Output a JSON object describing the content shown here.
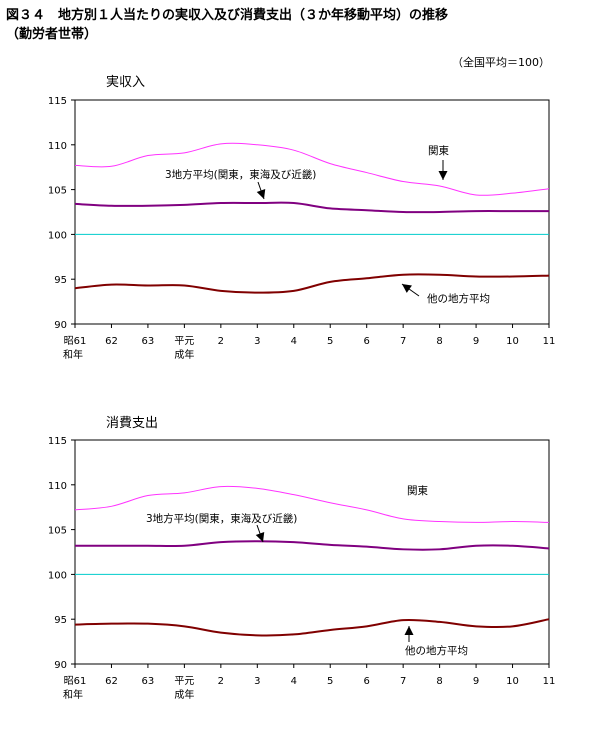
{
  "figure": {
    "title_line1": "図３４　地方別１人当たりの実収入及び消費支出（３か年移動平均）の推移",
    "title_line2": "（勤労者世帯）",
    "note": "（全国平均＝100）"
  },
  "colors": {
    "kanto": "#ff33ff",
    "three": "#800080",
    "other": "#800000",
    "national": "#00cccc"
  },
  "chart_data": [
    {
      "type": "line",
      "title": "実収入",
      "categories": [
        "昭61\n和年",
        "62",
        "63",
        "平元\n成年",
        "2",
        "3",
        "4",
        "5",
        "6",
        "7",
        "8",
        "9",
        "10",
        "11"
      ],
      "ylim": [
        90,
        115
      ],
      "yticks": [
        90,
        95,
        100,
        105,
        110,
        115
      ],
      "series": [
        {
          "name": "関東",
          "color": "#ff33ff",
          "width": 1,
          "values": [
            107.7,
            107.6,
            108.8,
            109.1,
            110.1,
            110.0,
            109.4,
            107.9,
            106.9,
            105.9,
            105.4,
            104.4,
            104.6,
            105.1
          ]
        },
        {
          "name": "3地方平均(関東，東海及び近畿)",
          "color": "#800080",
          "width": 2,
          "values": [
            103.4,
            103.2,
            103.2,
            103.3,
            103.5,
            103.5,
            103.5,
            102.9,
            102.7,
            102.5,
            102.5,
            102.6,
            102.6,
            102.6
          ]
        },
        {
          "name": "他の地方平均",
          "color": "#800000",
          "width": 2,
          "values": [
            94.0,
            94.4,
            94.3,
            94.3,
            93.7,
            93.5,
            93.7,
            94.7,
            95.1,
            95.5,
            95.5,
            95.3,
            95.3,
            95.4
          ]
        },
        {
          "name": "",
          "color": "#00cccc",
          "width": 1,
          "values": [
            100,
            100,
            100,
            100,
            100,
            100,
            100,
            100,
            100,
            100,
            100,
            100,
            100,
            100
          ]
        }
      ],
      "annotations": [
        {
          "text": "関東",
          "arrow": "down"
        },
        {
          "text": "3地方平均(関東，東海及び近畿)",
          "arrow": "down"
        },
        {
          "text": "他の地方平均",
          "arrow": "up-left"
        }
      ]
    },
    {
      "type": "line",
      "title": "消費支出",
      "categories": [
        "昭61\n和年",
        "62",
        "63",
        "平元\n成年",
        "2",
        "3",
        "4",
        "5",
        "6",
        "7",
        "8",
        "9",
        "10",
        "11"
      ],
      "ylim": [
        90,
        115
      ],
      "yticks": [
        90,
        95,
        100,
        105,
        110,
        115
      ],
      "series": [
        {
          "name": "関東",
          "color": "#ff33ff",
          "width": 1,
          "values": [
            107.2,
            107.6,
            108.8,
            109.1,
            109.8,
            109.6,
            108.9,
            108.0,
            107.2,
            106.2,
            105.9,
            105.8,
            105.9,
            105.8
          ]
        },
        {
          "name": "3地方平均(関東，東海及び近畿)",
          "color": "#800080",
          "width": 2,
          "values": [
            103.2,
            103.2,
            103.2,
            103.2,
            103.6,
            103.7,
            103.6,
            103.3,
            103.1,
            102.8,
            102.8,
            103.2,
            103.2,
            102.9
          ]
        },
        {
          "name": "他の地方平均",
          "color": "#800000",
          "width": 2,
          "values": [
            94.4,
            94.5,
            94.5,
            94.2,
            93.5,
            93.2,
            93.3,
            93.8,
            94.2,
            94.9,
            94.7,
            94.2,
            94.2,
            95.0
          ]
        },
        {
          "name": "",
          "color": "#00cccc",
          "width": 1,
          "values": [
            100,
            100,
            100,
            100,
            100,
            100,
            100,
            100,
            100,
            100,
            100,
            100,
            100,
            100
          ]
        }
      ],
      "annotations": [
        {
          "text": "関東",
          "arrow": "none"
        },
        {
          "text": "3地方平均(関東，東海及び近畿)",
          "arrow": "down"
        },
        {
          "text": "他の地方平均",
          "arrow": "up"
        }
      ]
    }
  ]
}
